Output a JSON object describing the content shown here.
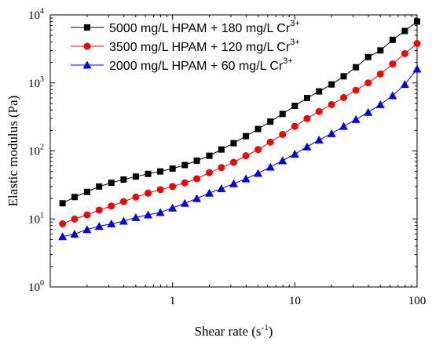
{
  "chart_data": {
    "type": "line",
    "title": "",
    "xlabel": "Shear rate (s",
    "xlabel_exp": "-1",
    "xlabel_suffix": ")",
    "ylabel": "Elastic modulus (Pa)",
    "x_scale": "log",
    "y_scale": "log",
    "xlim": [
      0.1,
      100
    ],
    "ylim": [
      1,
      10000
    ],
    "x_ticks": [
      {
        "value": 1,
        "label": "1"
      },
      {
        "value": 10,
        "label": "10"
      },
      {
        "value": 100,
        "label": "100"
      }
    ],
    "y_ticks": [
      {
        "value": 1,
        "base": "10",
        "exp": "0"
      },
      {
        "value": 10,
        "base": "10",
        "exp": "1"
      },
      {
        "value": 100,
        "base": "10",
        "exp": "2"
      },
      {
        "value": 1000,
        "base": "10",
        "exp": "3"
      },
      {
        "value": 10000,
        "base": "10",
        "exp": "4"
      }
    ],
    "grid": false,
    "legend_position": "top-left",
    "series": [
      {
        "name": "5000 mg/L HPAM + 180 mg/L Cr",
        "name_sup": "3+",
        "marker": "square",
        "color": "#000000",
        "x": [
          0.126,
          0.158,
          0.2,
          0.251,
          0.316,
          0.398,
          0.501,
          0.631,
          0.794,
          1,
          1.26,
          1.58,
          2,
          2.51,
          3.16,
          3.98,
          5.01,
          6.31,
          7.94,
          10,
          12.6,
          15.8,
          20,
          25.1,
          31.6,
          39.8,
          50.1,
          63.1,
          79.4,
          100
        ],
        "y": [
          17,
          21,
          25,
          30,
          34,
          38,
          42,
          46,
          50,
          55,
          62,
          72,
          85,
          105,
          130,
          165,
          210,
          270,
          350,
          460,
          600,
          750,
          950,
          1250,
          1700,
          2400,
          3000,
          4300,
          5800,
          8000
        ]
      },
      {
        "name": "3500 mg/L HPAM + 120 mg/L Cr",
        "name_sup": "3+",
        "marker": "circle",
        "color": "#ff0000",
        "x": [
          0.126,
          0.158,
          0.2,
          0.251,
          0.316,
          0.398,
          0.501,
          0.631,
          0.794,
          1,
          1.26,
          1.58,
          2,
          2.51,
          3.16,
          3.98,
          5.01,
          6.31,
          7.94,
          10,
          12.6,
          15.8,
          20,
          25.1,
          31.6,
          39.8,
          50.1,
          63.1,
          79.4,
          100
        ],
        "y": [
          8.5,
          10,
          11.5,
          13.5,
          15.5,
          18,
          21,
          24,
          27,
          30,
          34,
          39,
          48,
          57,
          68,
          85,
          105,
          135,
          175,
          230,
          300,
          380,
          480,
          610,
          780,
          1000,
          1350,
          1900,
          2700,
          3800
        ]
      },
      {
        "name": "2000 mg/L HPAM + 60 mg/L Cr",
        "name_sup": "3+",
        "marker": "triangle",
        "color": "#0000ff",
        "x": [
          0.126,
          0.158,
          0.2,
          0.251,
          0.316,
          0.398,
          0.501,
          0.631,
          0.794,
          1,
          1.26,
          1.58,
          2,
          2.51,
          3.16,
          3.98,
          5.01,
          6.31,
          7.94,
          10,
          12.6,
          15.8,
          20,
          25.1,
          31.6,
          39.8,
          50.1,
          63.1,
          79.4,
          100
        ],
        "y": [
          5.5,
          6,
          7,
          7.8,
          8.5,
          9.3,
          10.5,
          11.5,
          12.5,
          14.5,
          17,
          20,
          24,
          28,
          33,
          39,
          47,
          58,
          72,
          90,
          115,
          145,
          180,
          230,
          290,
          370,
          480,
          650,
          950,
          1600
        ]
      }
    ]
  }
}
